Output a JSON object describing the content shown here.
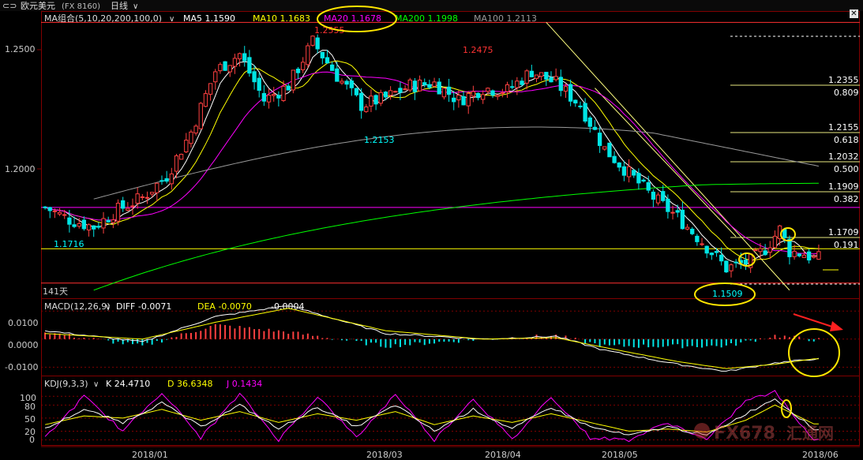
{
  "header": {
    "back_glyph": "⊂⊃",
    "instrument": "欧元美元",
    "code": "(FX 8160)",
    "period": "日线",
    "period_arrow": "∨"
  },
  "ma_panel": {
    "label": "MA组合(5,10,20,200,100,0)",
    "arrow": "∨",
    "items": [
      {
        "text": "MA5 1.1590",
        "color": "#ffffff"
      },
      {
        "text": "MA10 1.1683",
        "color": "#ffff00"
      },
      {
        "text": "MA20 1.1678",
        "color": "#ff00ff"
      },
      {
        "text": "MA200 1.1998",
        "color": "#00ff00"
      },
      {
        "text": "MA100 1.2113",
        "color": "#999999"
      }
    ],
    "y_ticks": [
      "1.2500",
      "1.2000"
    ],
    "price_labels": [
      {
        "text": "1.2555",
        "color": "#ff3333"
      },
      {
        "text": "1.2475",
        "color": "#ff3333"
      },
      {
        "text": "1.2153",
        "color": "#00ffff"
      },
      {
        "text": "1.1716",
        "color": "#00ffff"
      },
      {
        "text": "1.1509",
        "color": "#00ffff"
      }
    ],
    "days_label": "141天",
    "fib_levels": [
      {
        "price": "1.2355",
        "ratio": "0.809"
      },
      {
        "price": "1.2155",
        "ratio": "0.618"
      },
      {
        "price": "1.2032",
        "ratio": "0.500"
      },
      {
        "price": "1.1909",
        "ratio": "0.382"
      },
      {
        "price": "1.1709",
        "ratio": "0.191"
      }
    ]
  },
  "macd_panel": {
    "label": "MACD(12,26,9)",
    "arrow": "∨",
    "diff": "DIFF -0.0071",
    "dea": "DEA -0.0070",
    "macd": "-0.0004",
    "y_ticks": [
      "0.0100",
      "0.0000",
      "-0.0100"
    ]
  },
  "kdj_panel": {
    "label": "KDJ(9,3,3)",
    "arrow": "∨",
    "k": "K 24.4710",
    "d": "D 36.6348",
    "j": "J 0.1434",
    "y_ticks": [
      "100",
      "80",
      "50",
      "20",
      "0"
    ]
  },
  "x_axis": {
    "ticks": [
      "2018/01",
      "2018/03",
      "2018/04",
      "2018/05",
      "2018/06"
    ]
  },
  "watermark": {
    "text": "FX678",
    "sub": "汇通网"
  },
  "colors": {
    "up": "#ff4040",
    "down": "#00e5e5",
    "ma5": "#ffffff",
    "ma10": "#ffff00",
    "ma20": "#ff00ff",
    "ma200": "#00ff00",
    "ma100": "#999999",
    "grid": "#800000",
    "annotation": "#ffe600",
    "arrow": "#ff2020"
  },
  "chart_data": {
    "type": "candlestick",
    "period": "daily",
    "main": {
      "ylim": [
        1.145,
        1.262
      ],
      "path_points": [
        [
          0,
          1.182
        ],
        [
          5,
          1.177
        ],
        [
          10,
          1.174
        ],
        [
          15,
          1.181
        ],
        [
          20,
          1.186
        ],
        [
          25,
          1.195
        ],
        [
          30,
          1.213
        ],
        [
          35,
          1.238
        ],
        [
          40,
          1.245
        ],
        [
          45,
          1.226
        ],
        [
          50,
          1.232
        ],
        [
          55,
          1.25
        ],
        [
          60,
          1.236
        ],
        [
          65,
          1.224
        ],
        [
          70,
          1.227
        ],
        [
          75,
          1.232
        ],
        [
          80,
          1.233
        ],
        [
          85,
          1.226
        ],
        [
          90,
          1.231
        ],
        [
          95,
          1.23
        ],
        [
          100,
          1.238
        ],
        [
          105,
          1.233
        ],
        [
          110,
          1.224
        ],
        [
          115,
          1.206
        ],
        [
          120,
          1.196
        ],
        [
          125,
          1.186
        ],
        [
          130,
          1.178
        ],
        [
          135,
          1.168
        ],
        [
          140,
          1.157
        ],
        [
          145,
          1.16
        ],
        [
          148,
          1.165
        ],
        [
          151,
          1.173
        ],
        [
          153,
          1.164
        ],
        [
          156,
          1.163
        ],
        [
          158,
          1.161
        ]
      ],
      "horizontal_lines": [
        1.182,
        1.165,
        1.1509,
        1.258
      ],
      "trendlines": [
        {
          "from": [
            103,
            1.258
          ],
          "to": [
            153,
            1.148
          ]
        },
        {
          "from": [
            113,
            1.231
          ],
          "to": [
            142,
            1.17
          ]
        }
      ]
    },
    "macd": {
      "ylim": [
        -0.013,
        0.014
      ],
      "diff_points": [
        [
          0,
          0.003
        ],
        [
          20,
          -0.001
        ],
        [
          35,
          0.008
        ],
        [
          50,
          0.012
        ],
        [
          70,
          0.002
        ],
        [
          90,
          0.0
        ],
        [
          105,
          0.001
        ],
        [
          115,
          -0.004
        ],
        [
          130,
          -0.009
        ],
        [
          140,
          -0.0115
        ],
        [
          150,
          -0.0085
        ],
        [
          158,
          -0.0071
        ]
      ],
      "dea_points": [
        [
          0,
          0.002
        ],
        [
          20,
          0.0
        ],
        [
          35,
          0.006
        ],
        [
          50,
          0.011
        ],
        [
          70,
          0.003
        ],
        [
          90,
          0.0
        ],
        [
          105,
          0.0005
        ],
        [
          115,
          -0.003
        ],
        [
          130,
          -0.008
        ],
        [
          140,
          -0.0105
        ],
        [
          150,
          -0.009
        ],
        [
          158,
          -0.007
        ]
      ]
    },
    "kdj": {
      "ylim": [
        -10,
        115
      ],
      "k_points": [
        [
          0,
          25
        ],
        [
          8,
          70
        ],
        [
          16,
          40
        ],
        [
          24,
          85
        ],
        [
          32,
          30
        ],
        [
          40,
          80
        ],
        [
          48,
          25
        ],
        [
          56,
          75
        ],
        [
          64,
          30
        ],
        [
          72,
          80
        ],
        [
          80,
          20
        ],
        [
          88,
          70
        ],
        [
          96,
          25
        ],
        [
          104,
          75
        ],
        [
          112,
          30
        ],
        [
          120,
          10
        ],
        [
          128,
          30
        ],
        [
          136,
          10
        ],
        [
          144,
          60
        ],
        [
          150,
          95
        ],
        [
          158,
          24.5
        ]
      ],
      "d_points": [
        [
          0,
          35
        ],
        [
          8,
          55
        ],
        [
          16,
          50
        ],
        [
          24,
          70
        ],
        [
          32,
          45
        ],
        [
          40,
          65
        ],
        [
          48,
          40
        ],
        [
          56,
          60
        ],
        [
          64,
          45
        ],
        [
          72,
          65
        ],
        [
          80,
          35
        ],
        [
          88,
          55
        ],
        [
          96,
          40
        ],
        [
          104,
          60
        ],
        [
          112,
          40
        ],
        [
          120,
          20
        ],
        [
          128,
          25
        ],
        [
          136,
          18
        ],
        [
          144,
          45
        ],
        [
          150,
          80
        ],
        [
          158,
          36.6
        ]
      ],
      "j_points": [
        [
          0,
          5
        ],
        [
          8,
          100
        ],
        [
          16,
          20
        ],
        [
          24,
          110
        ],
        [
          32,
          5
        ],
        [
          40,
          105
        ],
        [
          48,
          0
        ],
        [
          56,
          100
        ],
        [
          64,
          5
        ],
        [
          72,
          105
        ],
        [
          80,
          0
        ],
        [
          88,
          95
        ],
        [
          96,
          0
        ],
        [
          104,
          100
        ],
        [
          112,
          5
        ],
        [
          120,
          0
        ],
        [
          128,
          40
        ],
        [
          136,
          0
        ],
        [
          144,
          90
        ],
        [
          150,
          110
        ],
        [
          158,
          0.14
        ]
      ]
    }
  }
}
